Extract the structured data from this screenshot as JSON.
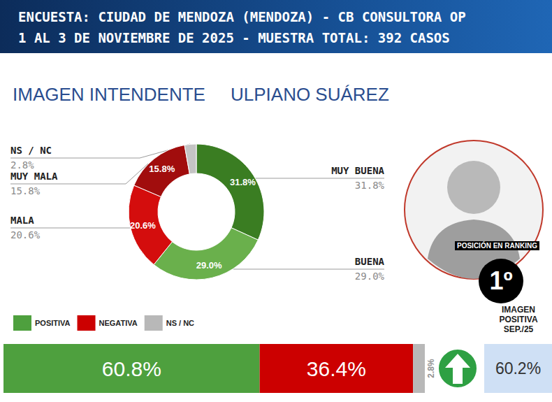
{
  "header": {
    "line1": "ENCUESTA: CIUDAD DE MENDOZA (MENDOZA) - CB CONSULTORA OP",
    "line2": "1 AL 3 DE NOVIEMBRE DE 2025 - MUESTRA TOTAL: 392 CASOS"
  },
  "chart_data": [
    {
      "type": "pie",
      "title": "IMAGEN INTENDENTE",
      "subtitle": "ULPIANO SUÁREZ",
      "categories": [
        "MUY BUENA",
        "BUENA",
        "MALA",
        "MUY MALA",
        "NS / NC"
      ],
      "values": [
        31.8,
        29.0,
        20.6,
        15.8,
        2.8
      ],
      "value_labels": [
        "31.8%",
        "29.0%",
        "20.6%",
        "15.8%",
        "2.8%"
      ],
      "colors": [
        "#3a7d22",
        "#6ab04c",
        "#d40d0d",
        "#a10d0d",
        "#c4c4c4"
      ],
      "data_labels": true
    },
    {
      "type": "bar",
      "orientation": "horizontal",
      "stacked": true,
      "categories": [
        null
      ],
      "series": [
        {
          "name": "POSITIVA",
          "color": "#4ea03e",
          "values": [
            60.8
          ],
          "value_labels": [
            "60.8%"
          ]
        },
        {
          "name": "NEGATIVA",
          "color": "#cc0000",
          "values": [
            36.4
          ],
          "value_labels": [
            "36.4%"
          ]
        },
        {
          "name": "NS / NC",
          "color": "#b8b8b8",
          "values": [
            2.8
          ],
          "value_labels": [
            "2.8%"
          ]
        }
      ],
      "xlim": [
        0,
        100
      ],
      "tick_labels": false,
      "data_labels": true,
      "legend": "top-left"
    }
  ],
  "ranking": {
    "label": "POSICIÓN EN RANKING",
    "value": "1º"
  },
  "comparison": {
    "title": "IMAGEN POSITIVA SEP./25",
    "value": 60.2,
    "value_label": "60.2%"
  }
}
